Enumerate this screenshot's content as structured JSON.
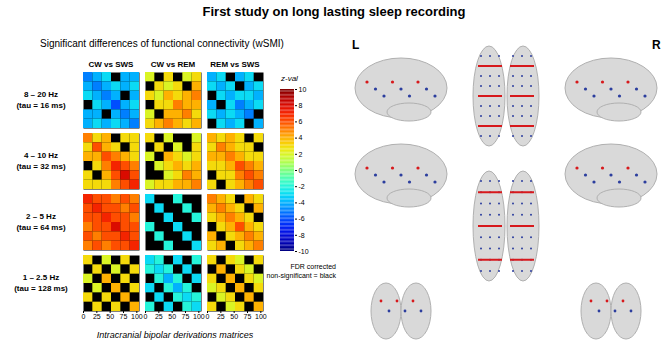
{
  "chart_data": {
    "type": "heatmap",
    "title": "First study on long lasting sleep recording",
    "subtitle": "Significant differences of functional connectivity (wSMI)",
    "columns": [
      "CW vs SWS",
      "CW vs REM",
      "REM vs SWS"
    ],
    "rows": [
      {
        "label": "8 – 20 Hz",
        "sublabel": "(tau = 16 ms)"
      },
      {
        "label": "4 – 10 Hz",
        "sublabel": "(tau = 32 ms)"
      },
      {
        "label": "2 – 5 Hz",
        "sublabel": "(tau = 64 ms)"
      },
      {
        "label": "1 – 2.5 Hz",
        "sublabel": "(tau = 128 ms)"
      }
    ],
    "xlim": [
      0,
      105
    ],
    "ylim": [
      0,
      105
    ],
    "xticks": [
      0,
      25,
      50,
      75,
      100
    ],
    "tick_labels": "x",
    "panels": [
      [
        [
          [
            -5,
            -4,
            -3,
            null,
            -4,
            -4
          ],
          [
            -4,
            -5,
            -4,
            -3,
            -4,
            -3
          ],
          [
            -3,
            -4,
            -5,
            -4,
            null,
            -4
          ],
          [
            null,
            -3,
            -4,
            -6,
            -4,
            -3
          ],
          [
            -4,
            -4,
            null,
            -4,
            -5,
            -4
          ],
          [
            -4,
            -3,
            -4,
            -3,
            -4,
            -5
          ]
        ],
        [
          [
            2,
            null,
            3,
            null,
            2,
            3
          ],
          [
            null,
            3,
            2,
            3,
            null,
            4
          ],
          [
            3,
            2,
            4,
            3,
            4,
            5
          ],
          [
            null,
            3,
            3,
            5,
            4,
            4
          ],
          [
            2,
            null,
            4,
            4,
            5,
            3
          ],
          [
            3,
            4,
            5,
            4,
            3,
            4
          ]
        ],
        [
          [
            -4,
            -3,
            null,
            -4,
            -3,
            null
          ],
          [
            -3,
            -4,
            -3,
            null,
            -4,
            -3
          ],
          [
            null,
            -3,
            -4,
            -3,
            -3,
            -4
          ],
          [
            -4,
            null,
            -3,
            -5,
            -4,
            -3
          ],
          [
            -3,
            -4,
            -3,
            -4,
            -5,
            null
          ],
          [
            null,
            -3,
            -4,
            -3,
            null,
            -4
          ]
        ]
      ],
      [
        [
          [
            5,
            3,
            4,
            null,
            3,
            3
          ],
          [
            3,
            6,
            4,
            3,
            null,
            3
          ],
          [
            4,
            4,
            6,
            5,
            4,
            3
          ],
          [
            null,
            3,
            5,
            7,
            6,
            5
          ],
          [
            3,
            null,
            4,
            6,
            8,
            6
          ],
          [
            3,
            3,
            3,
            5,
            6,
            7
          ]
        ],
        [
          [
            3,
            null,
            2,
            null,
            null,
            2
          ],
          [
            null,
            3,
            null,
            2,
            null,
            3
          ],
          [
            2,
            null,
            4,
            3,
            2,
            3
          ],
          [
            null,
            2,
            3,
            4,
            3,
            4
          ],
          [
            null,
            null,
            2,
            3,
            5,
            4
          ],
          [
            2,
            3,
            3,
            4,
            4,
            5
          ]
        ],
        [
          [
            4,
            3,
            4,
            3,
            null,
            3
          ],
          [
            3,
            5,
            4,
            3,
            3,
            null
          ],
          [
            4,
            4,
            5,
            4,
            3,
            3
          ],
          [
            3,
            3,
            4,
            6,
            5,
            4
          ],
          [
            null,
            3,
            3,
            5,
            6,
            5
          ],
          [
            3,
            null,
            3,
            4,
            5,
            6
          ]
        ]
      ],
      [
        [
          [
            7,
            6,
            6,
            5,
            6,
            5
          ],
          [
            6,
            7,
            6,
            6,
            5,
            6
          ],
          [
            6,
            6,
            7,
            6,
            6,
            5
          ],
          [
            5,
            6,
            6,
            8,
            6,
            6
          ],
          [
            6,
            5,
            6,
            6,
            7,
            6
          ],
          [
            5,
            6,
            5,
            6,
            6,
            7
          ]
        ],
        [
          [
            -3,
            null,
            null,
            -2,
            null,
            null
          ],
          [
            null,
            -3,
            null,
            null,
            -2,
            null
          ],
          [
            null,
            null,
            -3,
            null,
            null,
            -2
          ],
          [
            -2,
            null,
            null,
            -3,
            null,
            null
          ],
          [
            null,
            -2,
            null,
            null,
            -3,
            null
          ],
          [
            null,
            null,
            -2,
            null,
            null,
            -3
          ]
        ],
        [
          [
            5,
            4,
            3,
            null,
            4,
            3
          ],
          [
            4,
            5,
            4,
            3,
            null,
            4
          ],
          [
            3,
            4,
            5,
            4,
            3,
            null
          ],
          [
            null,
            3,
            4,
            6,
            4,
            3
          ],
          [
            4,
            null,
            3,
            4,
            5,
            4
          ],
          [
            3,
            4,
            null,
            3,
            4,
            5
          ]
        ]
      ],
      [
        [
          [
            3,
            null,
            2,
            null,
            3,
            null
          ],
          [
            null,
            3,
            null,
            2,
            null,
            3
          ],
          [
            2,
            null,
            4,
            null,
            3,
            null
          ],
          [
            null,
            2,
            null,
            4,
            null,
            3
          ],
          [
            3,
            null,
            3,
            null,
            4,
            null
          ],
          [
            null,
            3,
            null,
            3,
            null,
            4
          ]
        ],
        [
          [
            -3,
            -2,
            null,
            -3,
            null,
            -2
          ],
          [
            -2,
            -3,
            -2,
            null,
            -3,
            null
          ],
          [
            null,
            -2,
            -4,
            -2,
            null,
            -3
          ],
          [
            -3,
            null,
            -2,
            -4,
            -2,
            null
          ],
          [
            null,
            -3,
            null,
            -2,
            -3,
            -2
          ],
          [
            -2,
            null,
            -3,
            null,
            -2,
            -3
          ]
        ],
        [
          [
            3,
            null,
            3,
            2,
            null,
            3
          ],
          [
            null,
            4,
            null,
            3,
            2,
            null
          ],
          [
            3,
            null,
            4,
            null,
            3,
            2
          ],
          [
            2,
            3,
            null,
            4,
            null,
            3
          ],
          [
            null,
            2,
            3,
            null,
            4,
            null
          ],
          [
            3,
            null,
            2,
            3,
            null,
            4
          ]
        ]
      ]
    ],
    "colorbar": {
      "label": "z-val",
      "range": [
        -10,
        10
      ],
      "ticks": [
        10,
        8,
        6,
        4,
        2,
        0,
        -2,
        -4,
        -6,
        -8,
        -10
      ]
    },
    "note": [
      "FDR corrected",
      "non-significant = black"
    ],
    "caption": "Intracranial bipolar derivations matrices",
    "sides": [
      "L",
      "R"
    ]
  }
}
